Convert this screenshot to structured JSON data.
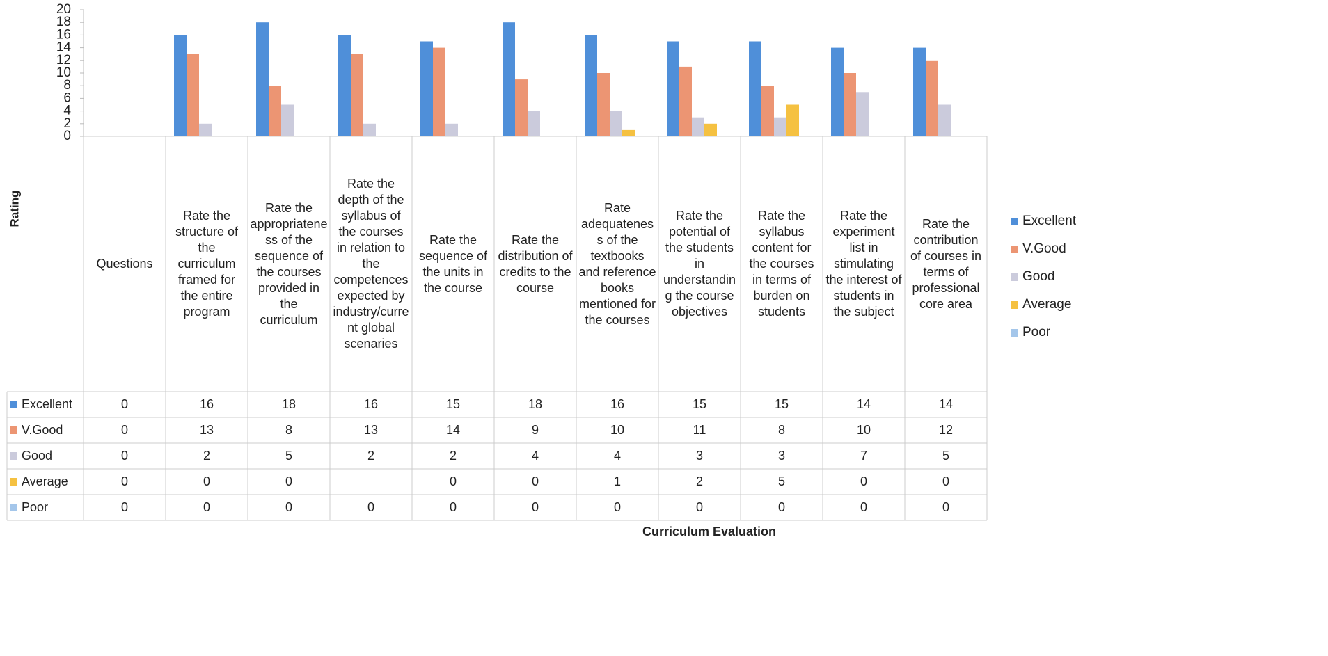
{
  "chart_data": {
    "type": "bar",
    "title": "Curriculum Evaluation",
    "y_label": "Rating",
    "categories": [
      "Questions",
      "Rate the structure of the curriculum framed for the entire program",
      "Rate the appropriateness of the sequence of the courses provided in the curriculum",
      "Rate the depth of the syllabus of the courses in relation to the competences expected by industry/current global scenaries",
      "Rate the sequence of the units in the course",
      "Rate the distribution of credits to the course",
      "Rate adequateness of the textbooks and reference books mentioned for the courses",
      "Rate the potential of the students in understanding the course objectives",
      "Rate the syllabus content for the courses in terms of burden on students",
      "Rate the experiment list in stimulating the interest of students in the subject",
      "Rate the contribution of courses in terms of professional core area"
    ],
    "series": [
      {
        "name": "Excellent",
        "color": "#4f8fd9",
        "values": [
          0,
          16,
          18,
          16,
          15,
          18,
          16,
          15,
          15,
          14,
          14
        ]
      },
      {
        "name": "V.Good",
        "color": "#ec9573",
        "values": [
          0,
          13,
          8,
          13,
          14,
          9,
          10,
          11,
          8,
          10,
          12
        ]
      },
      {
        "name": "Good",
        "color": "#cbcbdc",
        "values": [
          0,
          2,
          5,
          2,
          2,
          4,
          4,
          3,
          3,
          7,
          5
        ]
      },
      {
        "name": "Average",
        "color": "#f5c141",
        "values": [
          0,
          0,
          0,
          null,
          0,
          0,
          1,
          2,
          5,
          0,
          0
        ]
      },
      {
        "name": "Poor",
        "color": "#a4c6ea",
        "values": [
          0,
          0,
          0,
          0,
          0,
          0,
          0,
          0,
          0,
          0,
          0
        ]
      }
    ],
    "ylim": [
      0,
      20
    ],
    "yticks": [
      0,
      2,
      4,
      6,
      8,
      10,
      12,
      14,
      16,
      18,
      20
    ],
    "legend": "right"
  }
}
